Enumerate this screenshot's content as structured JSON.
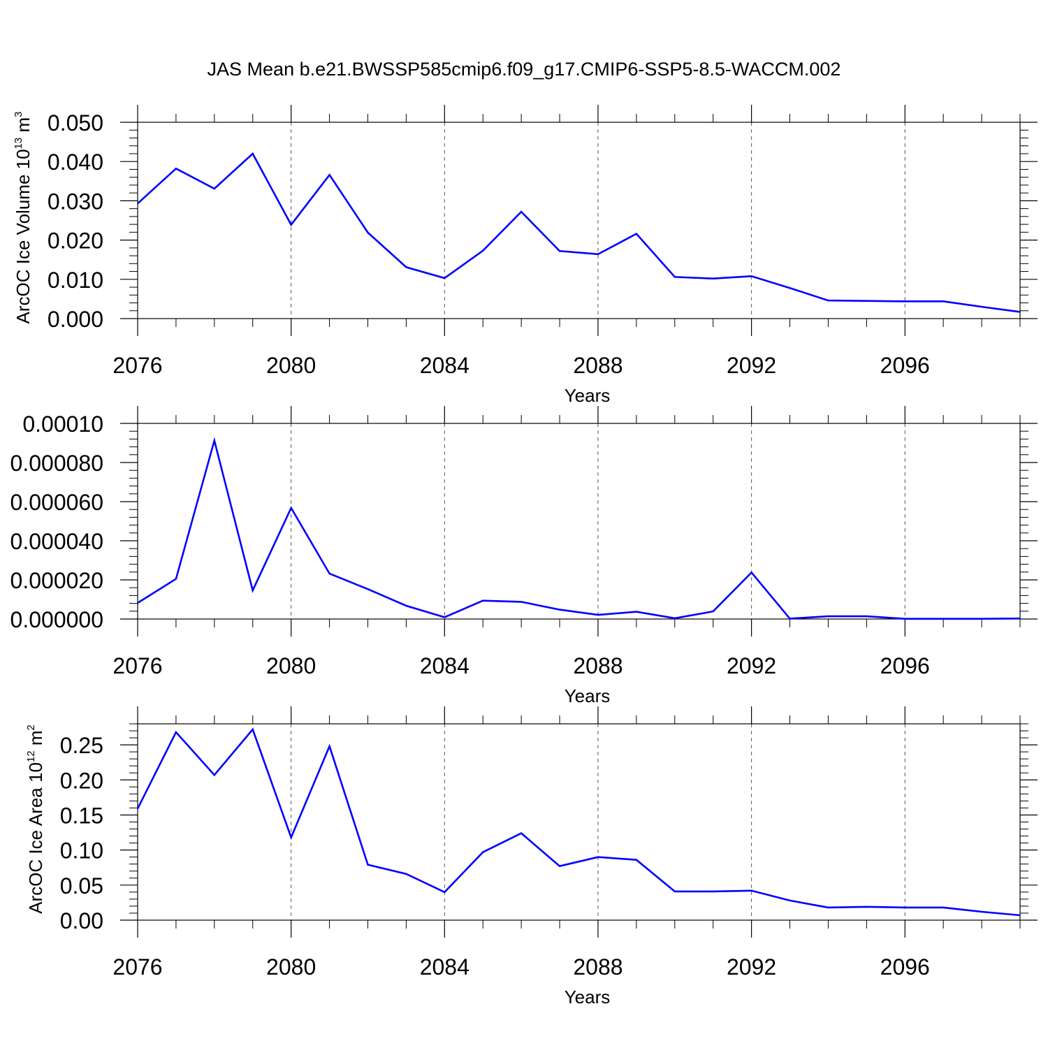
{
  "figure": {
    "title": "JAS Mean b.e21.BWSSP585cmip6.f09_g17.CMIP6-SSP5-8.5-WACCM.002"
  },
  "colors": {
    "line": "#0000ff",
    "axis": "#000000",
    "grid": "#555555"
  },
  "chart_data": [
    {
      "type": "line",
      "ylabel": {
        "text": "ArcOC Ice Volume 10",
        "exp": "13",
        "unit": " m",
        "unit_exp": "3"
      },
      "xlabel": "Years",
      "xlim": [
        2076,
        2099
      ],
      "ylim": [
        0.0,
        0.05
      ],
      "xticks": [
        2076,
        2080,
        2084,
        2088,
        2092,
        2096
      ],
      "xtick_labels": [
        "2076",
        "2080",
        "2084",
        "2088",
        "2092",
        "2096"
      ],
      "yticks": [
        0.0,
        0.01,
        0.02,
        0.03,
        0.04,
        0.05
      ],
      "ytick_labels": [
        "0.000",
        "0.010",
        "0.020",
        "0.030",
        "0.040",
        "0.050"
      ],
      "grid": "vertical dashed at major x ticks",
      "series": [
        {
          "x": [
            2076,
            2077,
            2078,
            2079,
            2080,
            2081,
            2082,
            2083,
            2084,
            2085,
            2086,
            2087,
            2088,
            2089,
            2090,
            2091,
            2092,
            2093,
            2094,
            2095,
            2096,
            2097,
            2098,
            2099
          ],
          "values": [
            0.0293,
            0.0382,
            0.0331,
            0.042,
            0.0239,
            0.0366,
            0.0219,
            0.0131,
            0.0103,
            0.0173,
            0.0272,
            0.0172,
            0.0164,
            0.0216,
            0.0106,
            0.0102,
            0.0108,
            0.0078,
            0.0046,
            0.0045,
            0.0044,
            0.0044,
            0.003,
            0.0017
          ]
        }
      ]
    },
    {
      "type": "line",
      "ylabel": {
        "text": "",
        "exp": "",
        "unit": "",
        "unit_exp": ""
      },
      "xlabel": "Years",
      "xlim": [
        2076,
        2099
      ],
      "ylim": [
        0.0,
        0.0001
      ],
      "xticks": [
        2076,
        2080,
        2084,
        2088,
        2092,
        2096
      ],
      "xtick_labels": [
        "2076",
        "2080",
        "2084",
        "2088",
        "2092",
        "2096"
      ],
      "yticks": [
        0.0,
        2e-05,
        4e-05,
        6e-05,
        8e-05,
        0.0001
      ],
      "ytick_labels": [
        "0.000000",
        "0.000020",
        "0.000040",
        "0.000060",
        "0.000080",
        "0.00010"
      ],
      "grid": "vertical dashed at major x ticks",
      "series": [
        {
          "x": [
            2076,
            2077,
            2078,
            2079,
            2080,
            2081,
            2082,
            2083,
            2084,
            2085,
            2086,
            2087,
            2088,
            2089,
            2090,
            2091,
            2092,
            2093,
            2094,
            2095,
            2096,
            2097,
            2098,
            2099
          ],
          "values": [
            8.2e-06,
            2.05e-05,
            9.12e-05,
            1.46e-05,
            5.68e-05,
            2.32e-05,
            1.53e-05,
            6.8e-06,
            9e-07,
            9.4e-06,
            8.8e-06,
            4.8e-06,
            2.1e-06,
            3.7e-06,
            4e-07,
            3.9e-06,
            2.38e-05,
            2e-07,
            1.4e-06,
            1.4e-06,
            1e-07,
            1e-07,
            1e-07,
            3e-07
          ]
        }
      ]
    },
    {
      "type": "line",
      "ylabel": {
        "text": "ArcOC Ice Area 10",
        "exp": "12",
        "unit": " m",
        "unit_exp": "2"
      },
      "xlabel": "Years",
      "xlim": [
        2076,
        2099
      ],
      "ylim": [
        0.0,
        0.28
      ],
      "xticks": [
        2076,
        2080,
        2084,
        2088,
        2092,
        2096
      ],
      "xtick_labels": [
        "2076",
        "2080",
        "2084",
        "2088",
        "2092",
        "2096"
      ],
      "yticks": [
        0.0,
        0.05,
        0.1,
        0.15,
        0.2,
        0.25
      ],
      "ytick_labels": [
        "0.00",
        "0.05",
        "0.10",
        "0.15",
        "0.20",
        "0.25"
      ],
      "grid": "vertical dashed at major x ticks",
      "series": [
        {
          "x": [
            2076,
            2077,
            2078,
            2079,
            2080,
            2081,
            2082,
            2083,
            2084,
            2085,
            2086,
            2087,
            2088,
            2089,
            2090,
            2091,
            2092,
            2093,
            2094,
            2095,
            2096,
            2097,
            2098,
            2099
          ],
          "values": [
            0.159,
            0.268,
            0.207,
            0.272,
            0.118,
            0.248,
            0.079,
            0.066,
            0.04,
            0.097,
            0.124,
            0.077,
            0.09,
            0.086,
            0.041,
            0.041,
            0.042,
            0.028,
            0.018,
            0.019,
            0.018,
            0.018,
            0.012,
            0.007
          ]
        }
      ]
    }
  ]
}
